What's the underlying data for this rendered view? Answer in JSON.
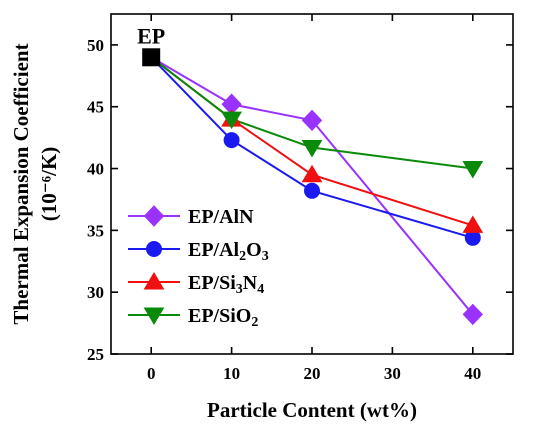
{
  "chart_data": {
    "type": "line",
    "xlabel": "Particle Content (wt%)",
    "ylabel": [
      "Thermal Expansion Coefficient",
      "(10⁻⁶/K)"
    ],
    "xlim": [
      -5,
      45
    ],
    "ylim": [
      25,
      52.5
    ],
    "xticks": [
      0,
      10,
      20,
      30,
      40
    ],
    "yticks": [
      25,
      30,
      35,
      40,
      45,
      50
    ],
    "grid": false,
    "legend_position": "bottom-left",
    "annotation": {
      "text": "EP",
      "x": 0,
      "y": 49
    },
    "base_point": {
      "label": "EP",
      "x": 0,
      "y": 49,
      "marker": "square",
      "color": "#000000"
    },
    "series": [
      {
        "name": "EP/AlN",
        "name_parts": [
          [
            "EP/AlN",
            ""
          ]
        ],
        "color": "#9932FF",
        "marker": "diamond",
        "x": [
          0,
          10,
          20,
          40
        ],
        "y": [
          49,
          45.2,
          43.9,
          28.2
        ]
      },
      {
        "name": "EP/Al2O3",
        "name_parts": [
          [
            "EP/Al",
            ""
          ],
          [
            "2",
            "sub"
          ],
          [
            "O",
            ""
          ],
          [
            "3",
            "sub"
          ]
        ],
        "color": "#1A1AF0",
        "marker": "circle",
        "x": [
          0,
          10,
          20,
          40
        ],
        "y": [
          49,
          42.3,
          38.2,
          34.4
        ]
      },
      {
        "name": "EP/Si3N4",
        "name_parts": [
          [
            "EP/Si",
            ""
          ],
          [
            "3",
            "sub"
          ],
          [
            "N",
            ""
          ],
          [
            "4",
            "sub"
          ]
        ],
        "color": "#F01010",
        "marker": "triangle-up",
        "x": [
          0,
          10,
          20,
          40
        ],
        "y": [
          49,
          44.0,
          39.5,
          35.4
        ]
      },
      {
        "name": "EP/SiO2",
        "name_parts": [
          [
            "EP/SiO",
            ""
          ],
          [
            "2",
            "sub"
          ]
        ],
        "color": "#0A8A0A",
        "marker": "triangle-down",
        "x": [
          0,
          10,
          20,
          40
        ],
        "y": [
          49,
          44.0,
          41.7,
          40.0
        ]
      }
    ]
  }
}
